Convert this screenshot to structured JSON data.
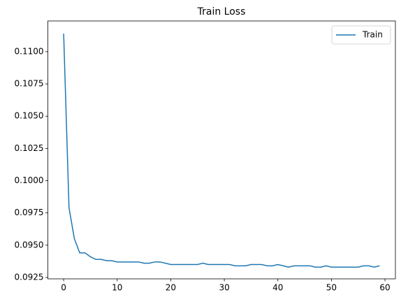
{
  "chart_data": {
    "type": "line",
    "title": "Train Loss",
    "x": [
      0,
      1,
      2,
      3,
      4,
      5,
      6,
      7,
      8,
      9,
      10,
      11,
      12,
      13,
      14,
      15,
      16,
      17,
      18,
      19,
      20,
      21,
      22,
      23,
      24,
      25,
      26,
      27,
      28,
      29,
      30,
      31,
      32,
      33,
      34,
      35,
      36,
      37,
      38,
      39,
      40,
      41,
      42,
      43,
      44,
      45,
      46,
      47,
      48,
      49,
      50,
      51,
      52,
      53,
      54,
      55,
      56,
      57,
      58,
      59
    ],
    "series": [
      {
        "name": "Train",
        "color": "#1f77b4",
        "values": [
          0.1114,
          0.0979,
          0.0955,
          0.0944,
          0.0944,
          0.0941,
          0.0939,
          0.0939,
          0.0938,
          0.0938,
          0.0937,
          0.0937,
          0.0937,
          0.0937,
          0.0937,
          0.0936,
          0.0936,
          0.0937,
          0.0937,
          0.0936,
          0.0935,
          0.0935,
          0.0935,
          0.0935,
          0.0935,
          0.0935,
          0.0936,
          0.0935,
          0.0935,
          0.0935,
          0.0935,
          0.0935,
          0.0934,
          0.0934,
          0.0934,
          0.0935,
          0.0935,
          0.0935,
          0.0934,
          0.0934,
          0.0935,
          0.0934,
          0.0933,
          0.0934,
          0.0934,
          0.0934,
          0.0934,
          0.0933,
          0.0933,
          0.0934,
          0.0933,
          0.0933,
          0.0933,
          0.0933,
          0.0933,
          0.0933,
          0.0934,
          0.0934,
          0.0933,
          0.0934
        ]
      }
    ],
    "xlim": [
      -2.95,
      61.95
    ],
    "xticks": [
      0,
      10,
      20,
      30,
      40,
      50,
      60
    ],
    "ylim": [
      0.09239,
      0.11238
    ],
    "yticks": [
      {
        "value": 0.0925,
        "label": "0.0925"
      },
      {
        "value": 0.095,
        "label": "0.0950"
      },
      {
        "value": 0.0975,
        "label": "0.0975"
      },
      {
        "value": 0.1,
        "label": "0.1000"
      },
      {
        "value": 0.1025,
        "label": "0.1025"
      },
      {
        "value": 0.105,
        "label": "0.1050"
      },
      {
        "value": 0.1075,
        "label": "0.1075"
      },
      {
        "value": 0.11,
        "label": "0.1100"
      }
    ],
    "legend": "upper right"
  }
}
